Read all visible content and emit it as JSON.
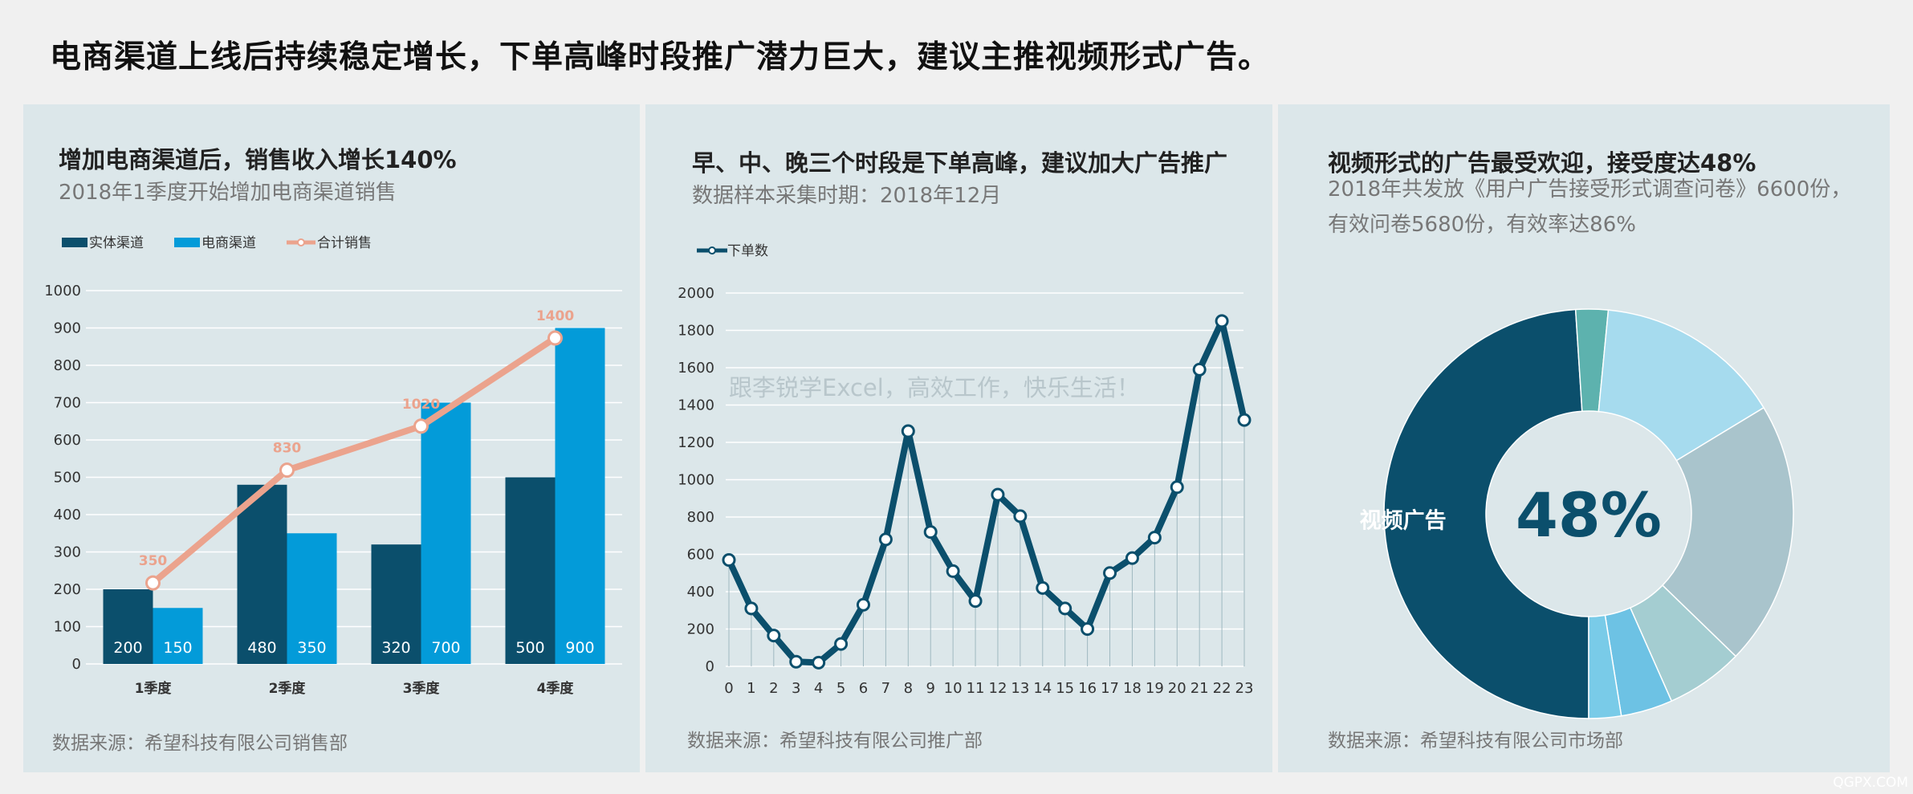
{
  "headline": "电商渠道上线后持续稳定增长，下单高峰时段推广潜力巨大，建议主推视频形式广告。",
  "colors": {
    "dark": "#0b4f6c",
    "blue": "#039bd9",
    "salmon": "#eba38d",
    "panel": "#dce7ea"
  },
  "panel1": {
    "title": "增加电商渠道后，销售收入增长140%",
    "subtitle": "2018年1季度开始增加电商渠道销售",
    "source": "数据来源：希望科技有限公司销售部"
  },
  "panel2": {
    "title": "早、中、晚三个时段是下单高峰，建议加大广告推广",
    "subtitle": "数据样本采集时期：2018年12月",
    "watermark_text": "跟李锐学Excel，高效工作，快乐生活！",
    "source": "数据来源：希望科技有限公司推广部"
  },
  "panel3": {
    "title": "视频形式的广告最受欢迎，接受度达48%",
    "subtitle_line1": "2018年共发放《用户广告接受形式调查问卷》6600份，",
    "subtitle_line2": "有效问卷5680份，有效率达86%",
    "source": "数据来源：希望科技有限公司市场部"
  },
  "corner_watermark": "QGPX.COM",
  "chart_data": [
    {
      "type": "bar",
      "categories": [
        "1季度",
        "2季度",
        "3季度",
        "4季度"
      ],
      "series": [
        {
          "name": "实体渠道",
          "values": [
            200,
            480,
            320,
            500
          ]
        },
        {
          "name": "电商渠道",
          "values": [
            150,
            350,
            700,
            900
          ]
        },
        {
          "name": "合计销售",
          "type": "line",
          "values": [
            350,
            830,
            1020,
            1400
          ],
          "plotted_values": [
            217,
            519,
            637,
            873
          ]
        }
      ],
      "ylim": [
        0,
        1000
      ],
      "yticks": [
        0,
        100,
        200,
        300,
        400,
        500,
        600,
        700,
        800,
        900,
        1000
      ],
      "legend": "top-left",
      "grid": true
    },
    {
      "type": "line",
      "x": [
        0,
        1,
        2,
        3,
        4,
        5,
        6,
        7,
        8,
        9,
        10,
        11,
        12,
        13,
        14,
        15,
        16,
        17,
        18,
        19,
        20,
        21,
        22,
        23
      ],
      "series": [
        {
          "name": "下单数",
          "values": [
            570,
            310,
            165,
            25,
            20,
            120,
            330,
            680,
            1260,
            720,
            510,
            350,
            920,
            805,
            420,
            310,
            200,
            500,
            580,
            690,
            960,
            1590,
            1850,
            1320
          ]
        }
      ],
      "ylim": [
        0,
        2000
      ],
      "yticks": [
        0,
        200,
        400,
        600,
        800,
        1000,
        1200,
        1400,
        1600,
        1800,
        2000
      ],
      "legend": "top-left",
      "grid": true
    },
    {
      "type": "pie",
      "donut": true,
      "center_label": "48%",
      "slices": [
        {
          "label": "视频广告",
          "value": 48,
          "color": "#0b4f6c"
        },
        {
          "label": "",
          "value": 2.5,
          "color": "#5db2ae"
        },
        {
          "label": "",
          "value": 14.5,
          "color": "#a6dbee"
        },
        {
          "label": "",
          "value": 20.5,
          "color": "#a9c4cc"
        },
        {
          "label": "",
          "value": 6,
          "color": "#a4cdd1"
        },
        {
          "label": "",
          "value": 4,
          "color": "#6dc2e4"
        },
        {
          "label": "",
          "value": 2.5,
          "color": "#79cbe8"
        }
      ]
    }
  ]
}
